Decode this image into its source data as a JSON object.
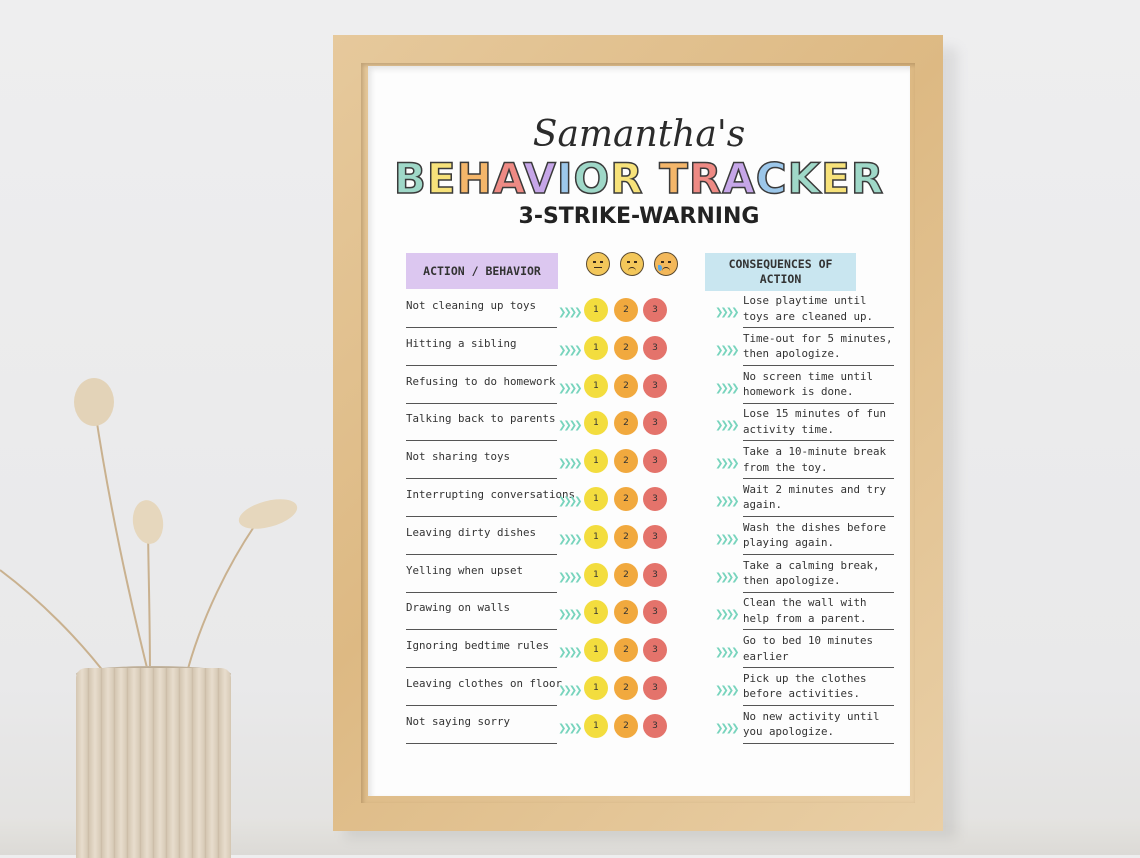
{
  "poster": {
    "name": "Samantha's",
    "title_letters": [
      {
        "ch": "B",
        "color": "#9fd8c8"
      },
      {
        "ch": "E",
        "color": "#f7e27a"
      },
      {
        "ch": "H",
        "color": "#f4b66a"
      },
      {
        "ch": "A",
        "color": "#ee8a84"
      },
      {
        "ch": "V",
        "color": "#c6a6e8"
      },
      {
        "ch": "I",
        "color": "#9cc7ea"
      },
      {
        "ch": "O",
        "color": "#9fd8c8"
      },
      {
        "ch": "R",
        "color": "#f7e27a"
      },
      {
        "ch": " ",
        "color": "#ffffff"
      },
      {
        "ch": "T",
        "color": "#f4b66a"
      },
      {
        "ch": "R",
        "color": "#ee8a84"
      },
      {
        "ch": "A",
        "color": "#c6a6e8"
      },
      {
        "ch": "C",
        "color": "#9cc7ea"
      },
      {
        "ch": "K",
        "color": "#9fd8c8"
      },
      {
        "ch": "E",
        "color": "#f7e27a"
      },
      {
        "ch": "R",
        "color": "#9fd8c8"
      }
    ],
    "tagline": "3-STRIKE-WARNING",
    "header_left": "ACTION / BEHAVIOR",
    "header_right": "CONSEQUENCES OF ACTION",
    "faces": [
      "neutral-face-icon",
      "sad-face-icon",
      "crying-face-icon"
    ],
    "strike_numbers": [
      "1",
      "2",
      "3"
    ],
    "rows": [
      {
        "behavior": "Not cleaning up toys",
        "consequence": "Lose playtime until toys are cleaned up."
      },
      {
        "behavior": "Hitting a sibling",
        "consequence": "Time-out for 5 minutes, then apologize."
      },
      {
        "behavior": "Refusing to do homework",
        "consequence": "No screen time until homework is done."
      },
      {
        "behavior": "Talking back to parents",
        "consequence": "Lose 15 minutes of fun activity time."
      },
      {
        "behavior": "Not sharing toys",
        "consequence": "Take a 10-minute break from the toy."
      },
      {
        "behavior": "Interrupting conversations",
        "consequence": "Wait 2 minutes and try again."
      },
      {
        "behavior": "Leaving dirty dishes",
        "consequence": "Wash the dishes before playing again."
      },
      {
        "behavior": "Yelling when upset",
        "consequence": "Take a calming break, then apologize."
      },
      {
        "behavior": "Drawing on walls",
        "consequence": "Clean the wall with help from a parent."
      },
      {
        "behavior": "Ignoring bedtime rules",
        "consequence": "Go to bed 10 minutes earlier"
      },
      {
        "behavior": "Leaving clothes on floor",
        "consequence": "Pick up the clothes before activities."
      },
      {
        "behavior": "Not saying sorry",
        "consequence": "No new activity until you apologize."
      }
    ]
  }
}
